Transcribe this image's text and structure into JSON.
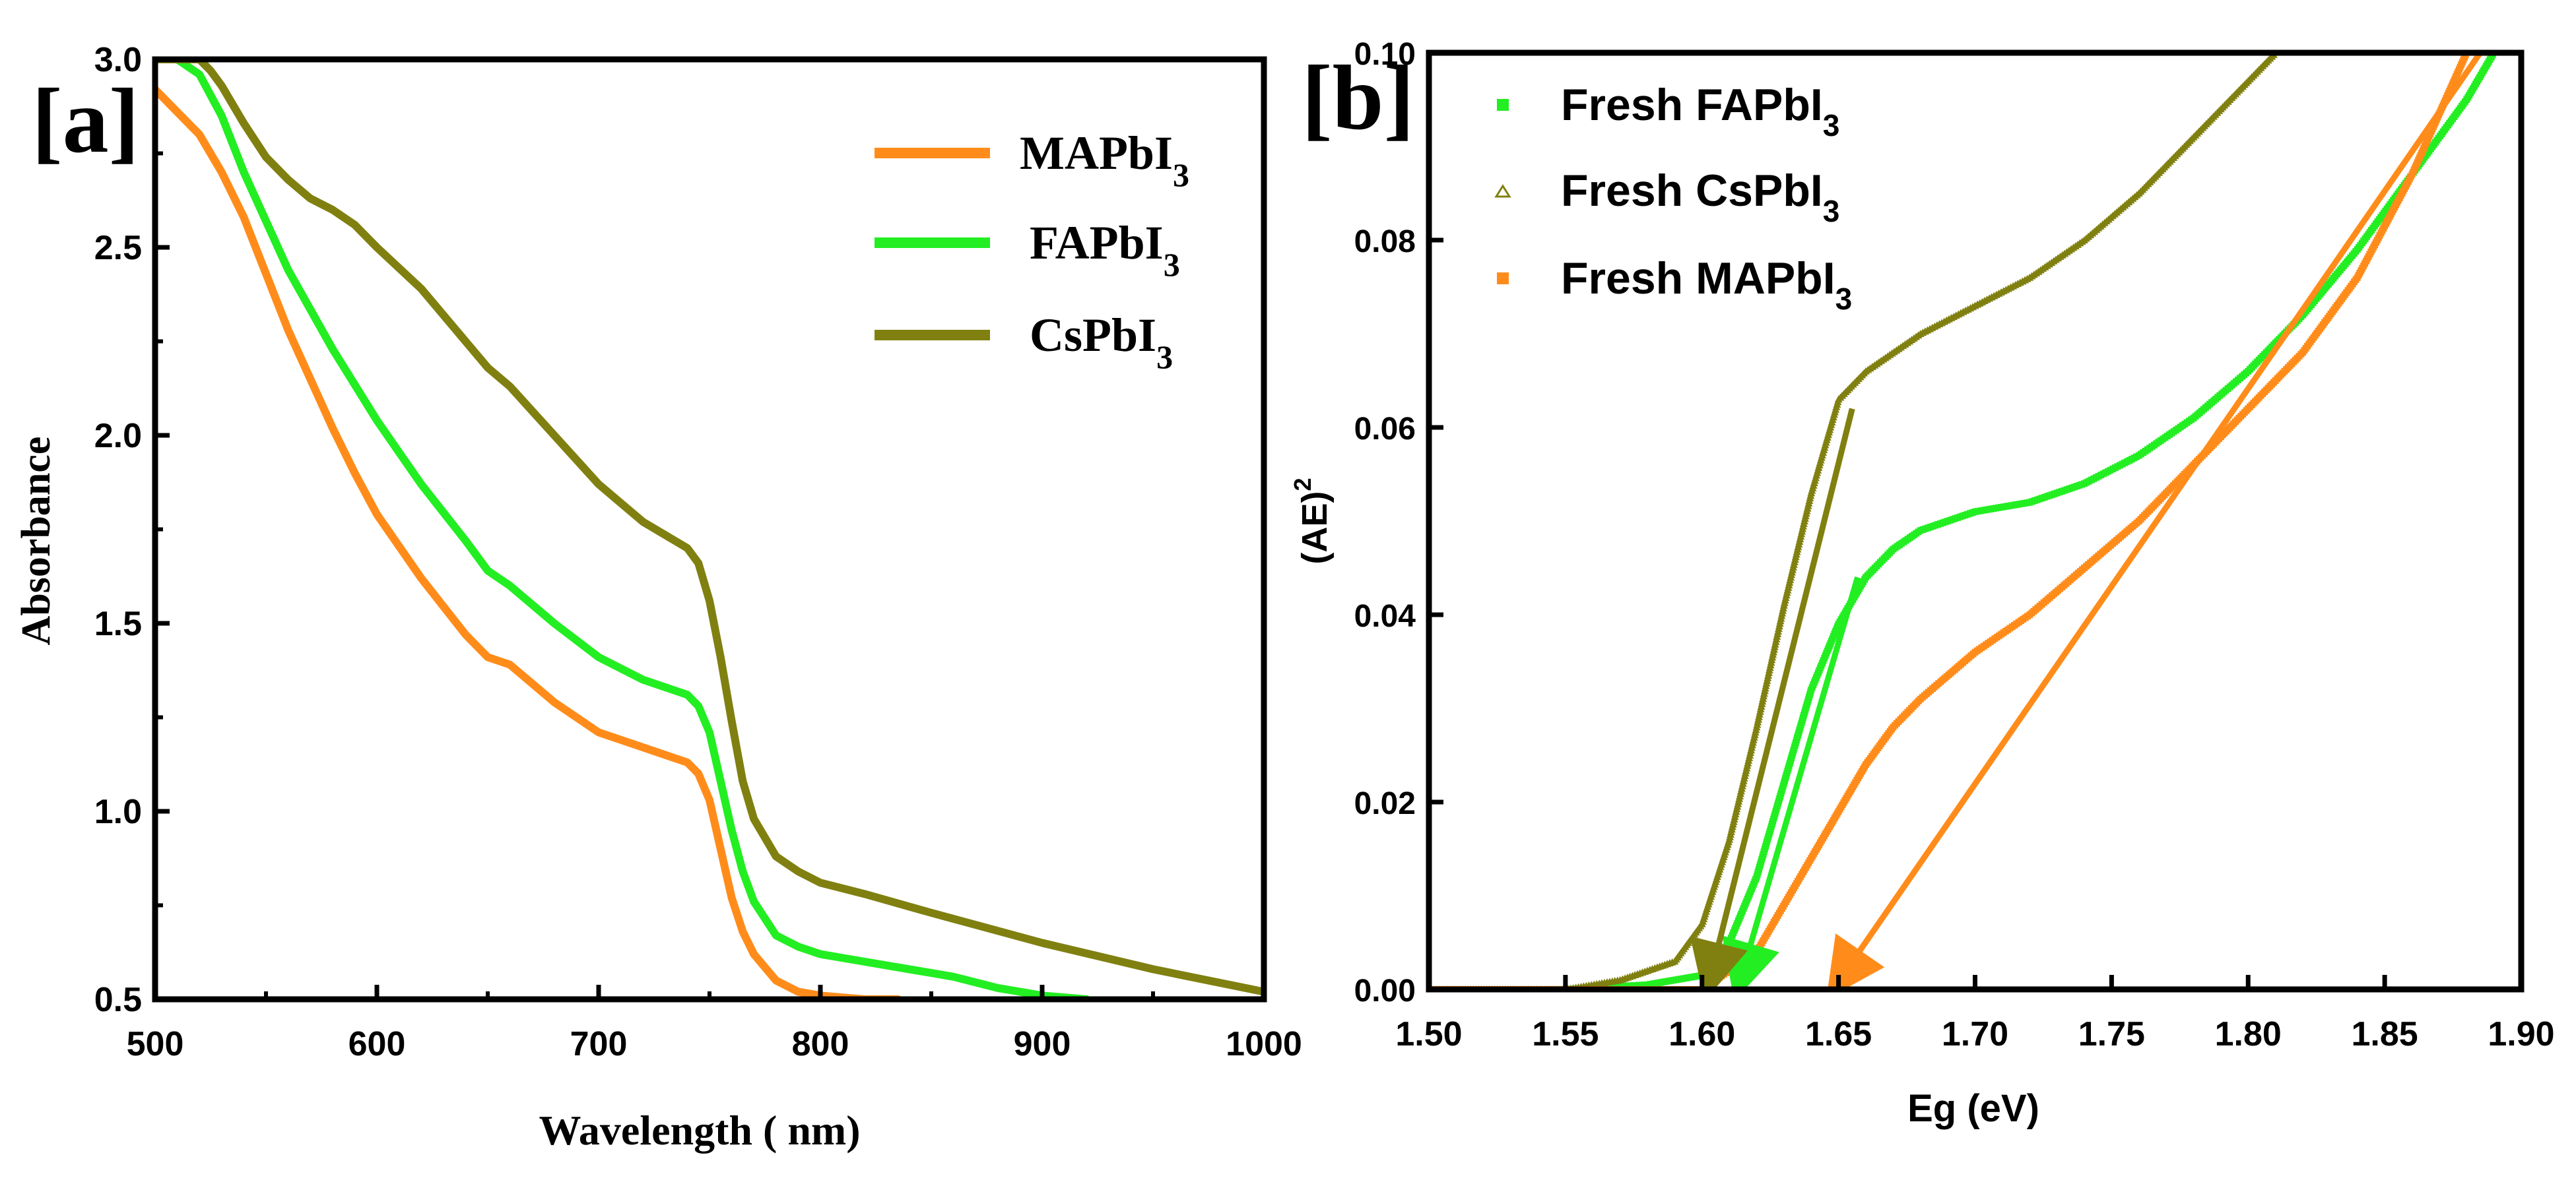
{
  "chart_data": [
    {
      "panel_label": "[a]",
      "type": "line",
      "title": "",
      "xlabel": "Wavelength ( nm)",
      "ylabel": "Absorbance",
      "xlim": [
        500,
        1000
      ],
      "ylim": [
        0.5,
        3.0
      ],
      "xticks": [
        500,
        600,
        700,
        800,
        900,
        1000
      ],
      "yticks": [
        0.5,
        1.0,
        1.5,
        2.0,
        2.5,
        3.0
      ],
      "xtick_labels": [
        "500",
        "600",
        "700",
        "800",
        "900",
        "1000"
      ],
      "ytick_labels": [
        "0.5",
        "1.0",
        "1.5",
        "2.0",
        "2.5",
        "3.0"
      ],
      "grid": false,
      "legend_position": "top-right",
      "series": [
        {
          "name": "MAPbI3",
          "legend_base": "MAPbI",
          "legend_sub": "3",
          "color": "#ff8c1a",
          "x": [
            500,
            510,
            520,
            530,
            540,
            550,
            560,
            570,
            580,
            590,
            600,
            620,
            640,
            650,
            660,
            680,
            700,
            720,
            740,
            745,
            750,
            755,
            760,
            765,
            770,
            780,
            790,
            800,
            810,
            820,
            835
          ],
          "y": [
            2.92,
            2.86,
            2.8,
            2.7,
            2.58,
            2.43,
            2.28,
            2.15,
            2.02,
            1.9,
            1.79,
            1.62,
            1.47,
            1.41,
            1.39,
            1.29,
            1.21,
            1.17,
            1.13,
            1.1,
            1.03,
            0.9,
            0.77,
            0.68,
            0.62,
            0.55,
            0.52,
            0.51,
            0.505,
            0.5,
            0.5
          ]
        },
        {
          "name": "FAPbI3",
          "legend_base": "FAPbI",
          "legend_sub": "3",
          "color": "#22ee22",
          "x": [
            500,
            510,
            520,
            530,
            540,
            550,
            560,
            580,
            600,
            620,
            640,
            650,
            660,
            680,
            700,
            720,
            740,
            745,
            750,
            755,
            760,
            765,
            770,
            780,
            790,
            800,
            820,
            840,
            860,
            880,
            900,
            920
          ],
          "y": [
            3.0,
            3.0,
            2.96,
            2.85,
            2.7,
            2.57,
            2.44,
            2.23,
            2.04,
            1.87,
            1.72,
            1.64,
            1.6,
            1.5,
            1.41,
            1.35,
            1.31,
            1.28,
            1.21,
            1.08,
            0.95,
            0.84,
            0.76,
            0.67,
            0.64,
            0.62,
            0.6,
            0.58,
            0.56,
            0.53,
            0.51,
            0.5
          ]
        },
        {
          "name": "CsPbI3",
          "legend_base": "CsPbI",
          "legend_sub": "3",
          "color": "#808011",
          "x": [
            500,
            520,
            525,
            530,
            540,
            550,
            560,
            570,
            580,
            590,
            600,
            620,
            640,
            650,
            660,
            680,
            700,
            720,
            740,
            745,
            750,
            755,
            760,
            765,
            770,
            780,
            790,
            800,
            820,
            850,
            900,
            950,
            1000
          ],
          "y": [
            3.0,
            3.0,
            2.97,
            2.93,
            2.83,
            2.74,
            2.68,
            2.63,
            2.6,
            2.56,
            2.5,
            2.39,
            2.25,
            2.18,
            2.13,
            2.0,
            1.87,
            1.77,
            1.7,
            1.66,
            1.56,
            1.41,
            1.24,
            1.08,
            0.98,
            0.88,
            0.84,
            0.81,
            0.78,
            0.73,
            0.65,
            0.58,
            0.52
          ]
        }
      ]
    },
    {
      "panel_label": "[b]",
      "type": "scatter",
      "title": "",
      "xlabel": "Eg (eV)",
      "ylabel": "(AE)",
      "ylabel_superscript": "2",
      "xlim": [
        1.5,
        1.9
      ],
      "ylim": [
        0.0,
        0.1
      ],
      "xticks": [
        1.5,
        1.55,
        1.6,
        1.65,
        1.7,
        1.75,
        1.8,
        1.85,
        1.9
      ],
      "yticks": [
        0.0,
        0.02,
        0.04,
        0.06,
        0.08,
        0.1
      ],
      "xtick_labels": [
        "1.50",
        "1.55",
        "1.60",
        "1.65",
        "1.70",
        "1.75",
        "1.80",
        "1.85",
        "1.90"
      ],
      "ytick_labels": [
        "0.00",
        "0.02",
        "0.04",
        "0.06",
        "0.08",
        "0.10"
      ],
      "grid": false,
      "legend_position": "top-left",
      "series": [
        {
          "name": "Fresh FAPbI3",
          "legend_base": "Fresh FAPbI",
          "legend_sub": "3",
          "marker": "square",
          "color": "#22ee22",
          "x": [
            1.5,
            1.55,
            1.58,
            1.6,
            1.61,
            1.62,
            1.63,
            1.64,
            1.65,
            1.66,
            1.67,
            1.68,
            1.7,
            1.72,
            1.74,
            1.76,
            1.78,
            1.8,
            1.82,
            1.84,
            1.86,
            1.88,
            1.89
          ],
          "y": [
            0.0,
            0.0,
            0.0005,
            0.0015,
            0.005,
            0.012,
            0.022,
            0.032,
            0.039,
            0.044,
            0.047,
            0.049,
            0.051,
            0.052,
            0.054,
            0.057,
            0.061,
            0.066,
            0.072,
            0.079,
            0.087,
            0.095,
            0.1
          ]
        },
        {
          "name": "Fresh CsPbI3",
          "legend_base": "Fresh CsPbI",
          "legend_sub": "3",
          "marker": "triangle",
          "color": "#808011",
          "x": [
            1.5,
            1.55,
            1.57,
            1.59,
            1.6,
            1.61,
            1.62,
            1.63,
            1.64,
            1.65,
            1.66,
            1.68,
            1.7,
            1.72,
            1.74,
            1.76,
            1.78,
            1.8,
            1.81
          ],
          "y": [
            0.0,
            0.0,
            0.001,
            0.003,
            0.007,
            0.016,
            0.028,
            0.041,
            0.053,
            0.063,
            0.066,
            0.07,
            0.073,
            0.076,
            0.08,
            0.085,
            0.091,
            0.097,
            0.1
          ]
        },
        {
          "name": "Fresh MAPbI3",
          "legend_base": "Fresh MAPbI",
          "legend_sub": "3",
          "marker": "square",
          "color": "#ff8c1a",
          "x": [
            1.5,
            1.6,
            1.62,
            1.64,
            1.65,
            1.66,
            1.67,
            1.68,
            1.7,
            1.72,
            1.74,
            1.76,
            1.78,
            1.8,
            1.82,
            1.84,
            1.86,
            1.88
          ],
          "y": [
            0.0,
            0.0,
            0.004,
            0.014,
            0.019,
            0.024,
            0.028,
            0.031,
            0.036,
            0.04,
            0.045,
            0.05,
            0.056,
            0.062,
            0.068,
            0.076,
            0.087,
            0.1
          ]
        }
      ],
      "tangent_lines": [
        {
          "name": "FAPbI3 tangent",
          "color": "#22ee22",
          "from": [
            1.657,
            0.044
          ],
          "to": [
            1.613,
            0.0
          ]
        },
        {
          "name": "CsPbI3 tangent",
          "color": "#808011",
          "from": [
            1.655,
            0.062
          ],
          "to": [
            1.602,
            0.0
          ]
        },
        {
          "name": "MAPbI3 tangent",
          "color": "#ff8c1a",
          "from": [
            1.885,
            0.1
          ],
          "to": [
            1.648,
            0.0
          ]
        }
      ]
    }
  ]
}
